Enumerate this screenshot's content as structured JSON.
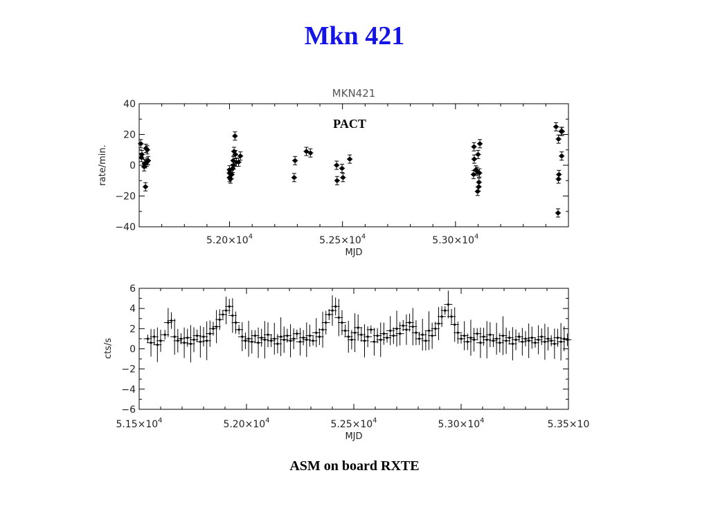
{
  "slide": {
    "title": "Mkn 421",
    "caption": "ASM on board RXTE"
  },
  "chart_data": [
    {
      "type": "scatter",
      "title": "MKN421",
      "annotation": "PACT",
      "xlabel": "MJD",
      "ylabel": "rate/min.",
      "xlim": [
        51600,
        53500
      ],
      "ylim": [
        -40,
        40
      ],
      "xticks": [
        52000,
        52500,
        53000
      ],
      "xtick_labels": [
        {
          "mantissa": "5.20×10",
          "exp": "4"
        },
        {
          "mantissa": "5.25×10",
          "exp": "4"
        },
        {
          "mantissa": "5.30×10",
          "exp": "4"
        }
      ],
      "yticks": [
        40,
        20,
        0,
        -20,
        -40
      ],
      "ytick_labels": [
        "40",
        "20",
        "0",
        "−20",
        "−40"
      ],
      "error_bars": true,
      "grid": false,
      "series": [
        {
          "x": [
            51607,
            51610,
            51612,
            51622,
            51626,
            51624,
            51630,
            51636,
            51640,
            51628,
            51634,
            52000,
            52000,
            52000,
            52004,
            52010,
            52018,
            52014,
            52016,
            52020,
            52026,
            52030,
            52040,
            52048,
            52024,
            52286,
            52290,
            52340,
            52358,
            52474,
            52476,
            52498,
            52502,
            52532,
            53080,
            53083,
            53082,
            53090,
            53096,
            53100,
            53106,
            53108,
            53098,
            53104,
            53103,
            53445,
            53456,
            53456,
            53454,
            53458,
            53468,
            53470,
            53472
          ],
          "y": [
            14,
            5,
            7,
            -1,
            1,
            1,
            11,
            10,
            3,
            -14,
            2,
            -8,
            -5,
            -3,
            -9,
            -6,
            0,
            -2,
            3,
            9,
            7,
            2,
            2,
            6,
            19,
            -8,
            3,
            9,
            8,
            0,
            -10,
            -2,
            -8,
            4,
            -6,
            4,
            12,
            -3,
            -4,
            7,
            -5,
            14,
            -17,
            -11,
            -14,
            25,
            17,
            -9,
            -31,
            -6,
            22,
            6,
            22
          ]
        }
      ]
    },
    {
      "type": "scatter",
      "xlabel": "MJD",
      "ylabel": "cts/s",
      "xlim": [
        51500,
        53500
      ],
      "ylim": [
        -6,
        6
      ],
      "xticks": [
        51500,
        52000,
        52500,
        53000,
        53500
      ],
      "xtick_labels": [
        {
          "mantissa": "5.15×10",
          "exp": "4"
        },
        {
          "mantissa": "5.20×10",
          "exp": "4"
        },
        {
          "mantissa": "5.25×10",
          "exp": "4"
        },
        {
          "mantissa": "5.30×10",
          "exp": "4"
        },
        {
          "mantissa": "5.35×10",
          "exp": ""
        }
      ],
      "yticks": [
        6,
        4,
        2,
        0,
        -2,
        -4,
        -6
      ],
      "ytick_labels": [
        "6",
        "4",
        "2",
        "0",
        "−2",
        "−4",
        "−6"
      ],
      "error_bars": true,
      "grid": false,
      "series": [
        {
          "x": [
            51540,
            51555,
            51570,
            51585,
            51600,
            51620,
            51635,
            51650,
            51665,
            51680,
            51695,
            51710,
            51725,
            51740,
            51755,
            51770,
            51785,
            51800,
            51815,
            51830,
            51845,
            51860,
            51875,
            51890,
            51905,
            51920,
            51935,
            51950,
            51965,
            51980,
            51995,
            52010,
            52025,
            52040,
            52055,
            52070,
            52085,
            52100,
            52115,
            52130,
            52145,
            52160,
            52175,
            52190,
            52205,
            52220,
            52235,
            52250,
            52265,
            52280,
            52295,
            52310,
            52325,
            52340,
            52355,
            52370,
            52385,
            52400,
            52415,
            52430,
            52445,
            52460,
            52475,
            52490,
            52505,
            52520,
            52535,
            52550,
            52565,
            52580,
            52595,
            52610,
            52625,
            52640,
            52655,
            52670,
            52685,
            52700,
            52715,
            52730,
            52745,
            52760,
            52775,
            52790,
            52805,
            52820,
            52835,
            52850,
            52865,
            52880,
            52895,
            52910,
            52925,
            52940,
            52955,
            52970,
            52985,
            53000,
            53015,
            53030,
            53045,
            53060,
            53075,
            53090,
            53105,
            53120,
            53135,
            53150,
            53165,
            53180,
            53195,
            53210,
            53225,
            53240,
            53255,
            53270,
            53285,
            53300,
            53315,
            53330,
            53345,
            53360,
            53375,
            53390,
            53405,
            53420,
            53435,
            53450,
            53465,
            53480,
            53495
          ],
          "y": [
            1.0,
            0.6,
            1.2,
            0.4,
            0.8,
            1.4,
            2.6,
            2.8,
            1.2,
            0.8,
            1.0,
            0.6,
            1.1,
            0.5,
            0.9,
            1.3,
            0.7,
            1.2,
            0.8,
            1.5,
            2.0,
            2.2,
            2.9,
            3.4,
            3.8,
            4.2,
            3.3,
            2.6,
            1.9,
            1.2,
            0.8,
            1.0,
            0.7,
            1.3,
            0.6,
            1.1,
            0.9,
            1.4,
            0.8,
            1.0,
            0.5,
            1.2,
            0.9,
            1.3,
            0.8,
            1.0,
            1.5,
            0.7,
            1.1,
            0.9,
            1.3,
            0.8,
            1.6,
            1.2,
            1.9,
            2.6,
            3.4,
            3.8,
            4.2,
            3.1,
            2.6,
            1.8,
            1.2,
            0.9,
            1.6,
            2.1,
            1.4,
            0.8,
            1.2,
            1.9,
            0.7,
            1.3,
            0.9,
            1.5,
            1.1,
            1.8,
            1.3,
            2.0,
            1.5,
            2.3,
            1.9,
            2.6,
            2.2,
            1.6,
            1.0,
            1.4,
            0.8,
            1.8,
            1.3,
            2.0,
            2.5,
            3.2,
            3.8,
            4.4,
            3.2,
            2.4,
            1.6,
            1.0,
            1.3,
            0.7,
            1.1,
            0.9,
            1.5,
            0.6,
            1.2,
            0.9,
            1.4,
            0.8,
            1.0,
            0.6,
            1.3,
            0.8,
            1.1,
            0.5,
            0.9,
            1.2,
            0.7,
            1.0,
            0.8,
            1.1,
            0.6,
            0.9,
            1.2,
            0.7,
            1.0,
            0.8,
            0.5,
            1.1,
            0.7,
            1.0,
            0.9
          ]
        }
      ]
    }
  ]
}
